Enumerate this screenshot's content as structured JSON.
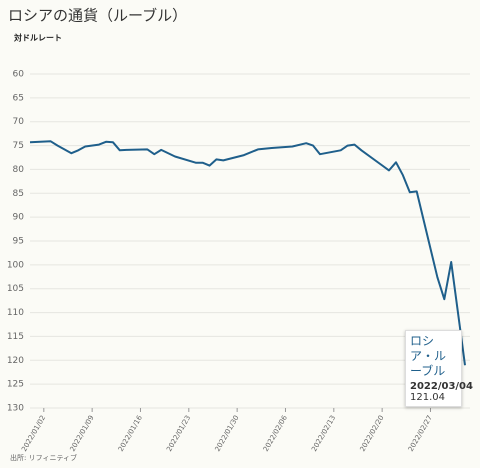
{
  "chart_data": {
    "type": "line",
    "title": "ロシアの通貨（ルーブル）",
    "y_label": "対ドルレート",
    "source": "出所: リフィニティブ",
    "x": [
      "2021/12/31",
      "2022/01/03",
      "2022/01/04",
      "2022/01/06",
      "2022/01/07",
      "2022/01/08",
      "2022/01/10",
      "2022/01/11",
      "2022/01/12",
      "2022/01/13",
      "2022/01/14",
      "2022/01/17",
      "2022/01/18",
      "2022/01/19",
      "2022/01/21",
      "2022/01/24",
      "2022/01/25",
      "2022/01/26",
      "2022/01/27",
      "2022/01/28",
      "2022/01/31",
      "2022/02/02",
      "2022/02/04",
      "2022/02/07",
      "2022/02/09",
      "2022/02/10",
      "2022/02/11",
      "2022/02/14",
      "2022/02/15",
      "2022/02/16",
      "2022/02/17",
      "2022/02/21",
      "2022/02/22",
      "2022/02/23",
      "2022/02/24",
      "2022/02/25",
      "2022/02/28",
      "2022/03/01",
      "2022/03/02",
      "2022/03/04"
    ],
    "series": [
      {
        "name": "ロシア・ルーブル",
        "color": "#1f5f8b",
        "values": [
          74.3,
          74.1,
          75.0,
          76.6,
          76.0,
          75.2,
          74.8,
          74.2,
          74.3,
          76.0,
          75.9,
          75.8,
          76.8,
          75.9,
          77.3,
          78.6,
          78.6,
          79.2,
          77.9,
          78.1,
          77.0,
          75.8,
          75.5,
          75.2,
          74.5,
          75.0,
          76.8,
          76.0,
          75.0,
          74.8,
          76.0,
          80.2,
          78.5,
          81.2,
          84.8,
          84.6,
          102.6,
          107.2,
          99.4,
          121.04
        ]
      }
    ],
    "xlim": [
      "2021/12/31",
      "2022/03/04"
    ],
    "xticks": [
      "2022/01/02",
      "2022/01/09",
      "2022/01/16",
      "2022/01/23",
      "2022/01/30",
      "2022/02/06",
      "2022/02/13",
      "2022/02/20",
      "2022/02/27"
    ],
    "ylim": [
      60,
      130
    ],
    "y_inverted": true,
    "yticks": [
      60,
      65,
      70,
      75,
      80,
      85,
      90,
      95,
      100,
      105,
      110,
      115,
      120,
      125,
      130
    ],
    "grid": true
  }
}
